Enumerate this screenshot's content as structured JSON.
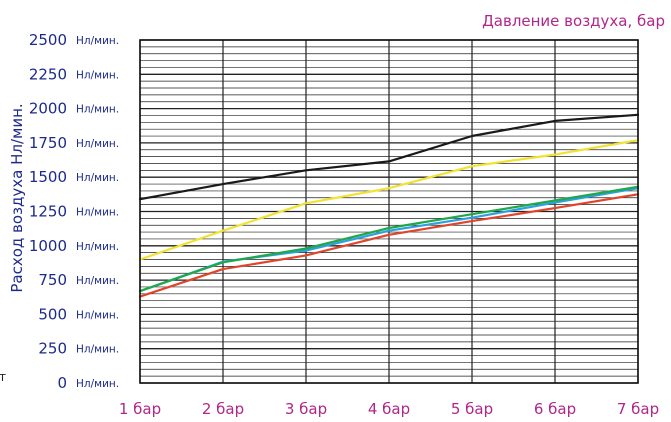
{
  "chart_data": {
    "type": "line",
    "title": "",
    "xlabel": "Давление воздуха, бар",
    "ylabel": "Расход воздуха Нл/мин.",
    "x": [
      1,
      2,
      3,
      4,
      5,
      6,
      7
    ],
    "x_tick_labels": [
      "1 бар",
      "2 бар",
      "3 бар",
      "4 бар",
      "5 бар",
      "6 бар",
      "7 бар"
    ],
    "y_tick_values": [
      0,
      250,
      500,
      750,
      1000,
      1250,
      1500,
      1750,
      2000,
      2250,
      2500
    ],
    "y_tick_numbers": [
      "0",
      "250",
      "500",
      "750",
      "1000",
      "1250",
      "1500",
      "1750",
      "2000",
      "2250",
      "2500"
    ],
    "y_tick_unit": "Нл/мин.",
    "ylim": [
      0,
      2500
    ],
    "xlim": [
      1,
      7
    ],
    "grid": true,
    "minor_y_step": 50,
    "series": [
      {
        "color": "#1a1a1a",
        "values": [
          1340,
          1450,
          1550,
          1615,
          1800,
          1910,
          1955
        ]
      },
      {
        "color": "#f2e232",
        "values": [
          900,
          1110,
          1310,
          1420,
          1580,
          1665,
          1770
        ]
      },
      {
        "color": "#2e9fe0",
        "values": [
          670,
          885,
          965,
          1110,
          1205,
          1315,
          1420
        ]
      },
      {
        "color": "#1fa84a",
        "values": [
          670,
          880,
          980,
          1130,
          1230,
          1330,
          1430
        ]
      },
      {
        "color": "#e0452a",
        "values": [
          630,
          830,
          930,
          1080,
          1180,
          1275,
          1375
        ]
      }
    ]
  },
  "stray_text": "т"
}
